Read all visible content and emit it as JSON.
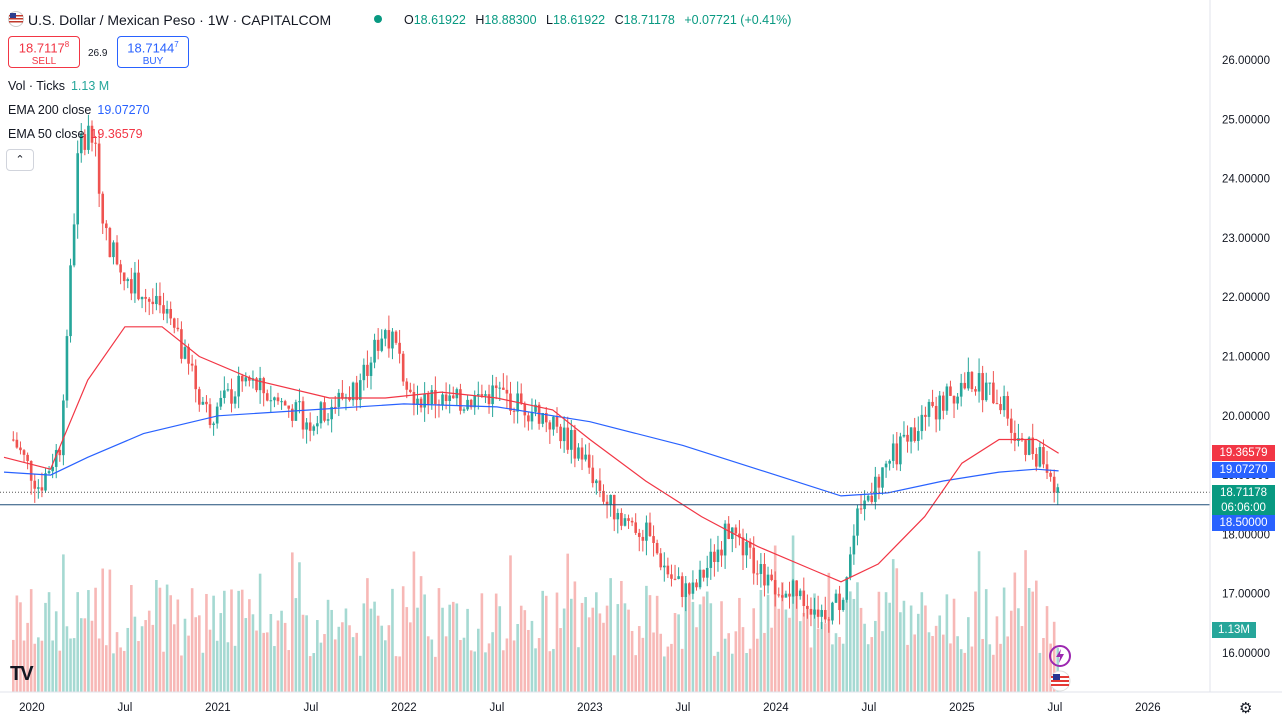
{
  "header": {
    "symbol_title": "U.S. Dollar / Mexican Peso · 1W · CAPITALCOM",
    "ohlc": {
      "open_label": "O",
      "open": "18.61922",
      "high_label": "H",
      "high": "18.88300",
      "low_label": "L",
      "low": "18.61922",
      "close_label": "C",
      "close": "18.71178",
      "change": "+0.07721 (+0.41%)"
    }
  },
  "trade": {
    "sell_price": "18.7117",
    "sell_price_sup": "8",
    "sell_label": "SELL",
    "spread": "26.9",
    "buy_price": "18.7144",
    "buy_price_sup": "7",
    "buy_label": "BUY"
  },
  "legend": {
    "vol_label": "Vol · Ticks",
    "vol_value": "1.13 M",
    "ema200_label": "EMA 200 close",
    "ema200_value": "19.07270",
    "ema50_label": "EMA 50 close",
    "ema50_value": "19.36579",
    "collapse_glyph": "⌃"
  },
  "price_labels": {
    "ema50": "19.36579",
    "ema200": "19.07270",
    "last": "18.71178",
    "countdown": "06:06:00",
    "line": "18.50000",
    "volume": "1.13M"
  },
  "branding": {
    "logo_text": "TV"
  },
  "colors": {
    "up": "#26a69a",
    "down": "#ef5350",
    "ema50": "#f23645",
    "ema200": "#2962ff",
    "last_price": "#089981",
    "volume_up": "#a5d9d2",
    "volume_down": "#f7b8b6"
  },
  "chart_data": {
    "type": "candlestick",
    "title": "U.S. Dollar / Mexican Peso · 1W · CAPITALCOM",
    "y_axis": {
      "ticks": [
        "26.00000",
        "25.00000",
        "24.00000",
        "23.00000",
        "22.00000",
        "21.00000",
        "20.00000",
        "19.00000",
        "18.00000",
        "17.00000",
        "16.00000"
      ],
      "range": [
        15.35,
        26.6
      ]
    },
    "x_axis": {
      "ticks": [
        "2020",
        "Jul",
        "2021",
        "Jul",
        "2022",
        "Jul",
        "2023",
        "Jul",
        "2024",
        "Jul",
        "2025",
        "Jul",
        "2026"
      ],
      "range_years": [
        2019.85,
        2026.4
      ]
    },
    "key_points": [
      {
        "t": 2019.9,
        "price": 19.6
      },
      {
        "t": 2020.04,
        "price": 18.8
      },
      {
        "t": 2020.15,
        "price": 19.5
      },
      {
        "t": 2020.25,
        "price": 24.5
      },
      {
        "t": 2020.32,
        "price": 24.9
      },
      {
        "t": 2020.4,
        "price": 23.0
      },
      {
        "t": 2020.5,
        "price": 22.4
      },
      {
        "t": 2020.62,
        "price": 22.0
      },
      {
        "t": 2020.75,
        "price": 21.5
      },
      {
        "t": 2020.95,
        "price": 20.0
      },
      {
        "t": 2021.15,
        "price": 20.6
      },
      {
        "t": 2021.25,
        "price": 20.4
      },
      {
        "t": 2021.5,
        "price": 19.9
      },
      {
        "t": 2021.75,
        "price": 20.5
      },
      {
        "t": 2021.9,
        "price": 21.5
      },
      {
        "t": 2022.05,
        "price": 20.4
      },
      {
        "t": 2022.25,
        "price": 20.2
      },
      {
        "t": 2022.5,
        "price": 20.4
      },
      {
        "t": 2022.75,
        "price": 20.0
      },
      {
        "t": 2022.95,
        "price": 19.4
      },
      {
        "t": 2023.1,
        "price": 18.5
      },
      {
        "t": 2023.3,
        "price": 18.0
      },
      {
        "t": 2023.45,
        "price": 17.2
      },
      {
        "t": 2023.55,
        "price": 17.0
      },
      {
        "t": 2023.75,
        "price": 18.1
      },
      {
        "t": 2023.9,
        "price": 17.4
      },
      {
        "t": 2024.05,
        "price": 17.1
      },
      {
        "t": 2024.25,
        "price": 16.7
      },
      {
        "t": 2024.35,
        "price": 16.9
      },
      {
        "t": 2024.45,
        "price": 18.4
      },
      {
        "t": 2024.6,
        "price": 19.2
      },
      {
        "t": 2024.75,
        "price": 19.8
      },
      {
        "t": 2024.95,
        "price": 20.4
      },
      {
        "t": 2025.05,
        "price": 20.6
      },
      {
        "t": 2025.2,
        "price": 20.3
      },
      {
        "t": 2025.3,
        "price": 19.7
      },
      {
        "t": 2025.45,
        "price": 19.2
      },
      {
        "t": 2025.52,
        "price": 18.71
      }
    ],
    "ema50_points": [
      {
        "t": 2019.85,
        "price": 19.3
      },
      {
        "t": 2020.1,
        "price": 19.1
      },
      {
        "t": 2020.3,
        "price": 20.6
      },
      {
        "t": 2020.5,
        "price": 21.5
      },
      {
        "t": 2020.7,
        "price": 21.5
      },
      {
        "t": 2020.9,
        "price": 21.0
      },
      {
        "t": 2021.2,
        "price": 20.6
      },
      {
        "t": 2021.6,
        "price": 20.3
      },
      {
        "t": 2021.9,
        "price": 20.3
      },
      {
        "t": 2022.2,
        "price": 20.4
      },
      {
        "t": 2022.5,
        "price": 20.3
      },
      {
        "t": 2022.8,
        "price": 20.1
      },
      {
        "t": 2023.0,
        "price": 19.6
      },
      {
        "t": 2023.3,
        "price": 18.9
      },
      {
        "t": 2023.6,
        "price": 18.3
      },
      {
        "t": 2023.9,
        "price": 17.8
      },
      {
        "t": 2024.2,
        "price": 17.4
      },
      {
        "t": 2024.35,
        "price": 17.2
      },
      {
        "t": 2024.55,
        "price": 17.5
      },
      {
        "t": 2024.8,
        "price": 18.3
      },
      {
        "t": 2025.0,
        "price": 19.2
      },
      {
        "t": 2025.2,
        "price": 19.6
      },
      {
        "t": 2025.4,
        "price": 19.6
      },
      {
        "t": 2025.52,
        "price": 19.37
      }
    ],
    "ema200_points": [
      {
        "t": 2019.85,
        "price": 19.05
      },
      {
        "t": 2020.1,
        "price": 19.0
      },
      {
        "t": 2020.3,
        "price": 19.3
      },
      {
        "t": 2020.6,
        "price": 19.7
      },
      {
        "t": 2021.0,
        "price": 20.0
      },
      {
        "t": 2021.5,
        "price": 20.1
      },
      {
        "t": 2022.0,
        "price": 20.2
      },
      {
        "t": 2022.5,
        "price": 20.15
      },
      {
        "t": 2023.0,
        "price": 19.9
      },
      {
        "t": 2023.5,
        "price": 19.5
      },
      {
        "t": 2024.0,
        "price": 19.0
      },
      {
        "t": 2024.35,
        "price": 18.65
      },
      {
        "t": 2024.6,
        "price": 18.7
      },
      {
        "t": 2024.9,
        "price": 18.9
      },
      {
        "t": 2025.2,
        "price": 19.05
      },
      {
        "t": 2025.4,
        "price": 19.1
      },
      {
        "t": 2025.52,
        "price": 19.07
      }
    ],
    "horizontal_line": 18.5,
    "last_price": 18.71178,
    "volume_last": "1.13M",
    "legend": [
      "EMA 200 close",
      "EMA 50 close"
    ]
  }
}
